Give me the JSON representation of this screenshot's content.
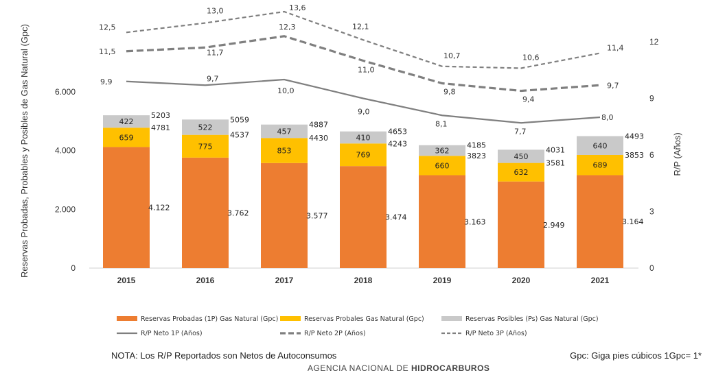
{
  "chart_data": {
    "type": "bar",
    "categories": [
      "2015",
      "2016",
      "2017",
      "2018",
      "2019",
      "2020",
      "2021"
    ],
    "stacked_series": [
      {
        "name": "Reservas Probadas (1P) Gas Natural (Gpc)",
        "values": [
          4122,
          3762,
          3577,
          3474,
          3163,
          2949,
          3164
        ],
        "labels": [
          "4.122",
          "3.762",
          "3.577",
          "3.474",
          "3.163",
          "2.949",
          "3.164"
        ],
        "color": "#ED7D31"
      },
      {
        "name": "Reservas Probales Gas Natural (Gpc)",
        "values": [
          659,
          775,
          853,
          769,
          660,
          632,
          689
        ],
        "labels": [
          "659",
          "775",
          "853",
          "769",
          "660",
          "632",
          "689"
        ],
        "color": "#FFC000"
      },
      {
        "name": "Reservas Posibles (Ps) Gas Natural (Gpc)",
        "values": [
          422,
          522,
          457,
          410,
          362,
          450,
          640
        ],
        "labels": [
          "422",
          "522",
          "457",
          "410",
          "362",
          "450",
          "640"
        ],
        "color": "#C9C9C9"
      }
    ],
    "cumulative_labels": {
      "2p": [
        "4781",
        "4537",
        "4430",
        "4243",
        "3823",
        "3581",
        "3853"
      ],
      "3p": [
        "5203",
        "5059",
        "4887",
        "4653",
        "4185",
        "4031",
        "4493"
      ]
    },
    "line_series": [
      {
        "name": "R/P Neto 1P (Años)",
        "values": [
          9.9,
          9.7,
          10.0,
          9.0,
          8.1,
          7.7,
          8.0
        ],
        "labels": [
          "9,9",
          "9,7",
          "10,0",
          "9,0",
          "8,1",
          "7,7",
          "8,0"
        ],
        "style": "solid",
        "color": "#7F7F7F"
      },
      {
        "name": "R/P Neto 2P  (Años)",
        "values": [
          11.5,
          11.7,
          12.3,
          11.0,
          9.8,
          9.4,
          9.7
        ],
        "labels": [
          "11,5",
          "11,7",
          "12,3",
          "11,0",
          "9,8",
          "9,4",
          "9,7"
        ],
        "style": "longdash",
        "color": "#7F7F7F"
      },
      {
        "name": "R/P Neto 3P  (Años)",
        "values": [
          12.5,
          13.0,
          13.6,
          12.1,
          10.7,
          10.6,
          11.4
        ],
        "labels": [
          "12,5",
          "13,0",
          "13,6",
          "12,1",
          "10,7",
          "10,6",
          "11,4"
        ],
        "style": "dash",
        "color": "#7F7F7F"
      }
    ],
    "y_left": {
      "label": "Reservas Probadas, Probables y Posibles de Gas Natural (Gpc)",
      "ticks": [
        0,
        2000,
        4000,
        6000
      ],
      "tick_labels": [
        "0",
        "2.000",
        "4.000",
        "6.000"
      ]
    },
    "y_right": {
      "label": "R/P (Años)",
      "ticks": [
        0,
        3,
        6,
        9,
        12
      ],
      "tick_labels": [
        "0",
        "3",
        "6",
        "9",
        "12"
      ]
    },
    "legend_position": "bottom",
    "grid": false
  },
  "notes": {
    "left": "NOTA: Los R/P Reportados son Netos de Autoconsumos",
    "right": "Gpc: Giga pies cúbicos 1Gpc= 1*"
  },
  "agency": {
    "prefix": "AGENCIA NACIONAL DE ",
    "bold": "HIDROCARBUROS"
  }
}
